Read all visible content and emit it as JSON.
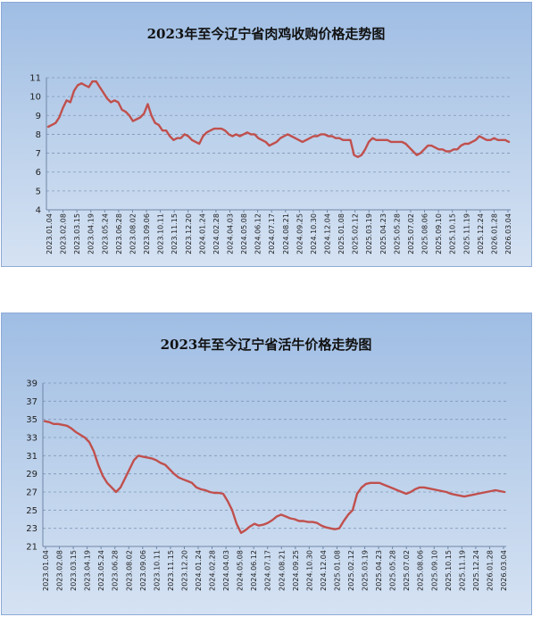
{
  "line_color": "#c0504d",
  "chart_data": [
    {
      "type": "line",
      "title": "2023年至今辽宁省肉鸡收购价格走势图",
      "xlabel": "",
      "ylabel": "",
      "ylim": [
        4,
        11
      ],
      "yticks": [
        4,
        5,
        6,
        7,
        8,
        9,
        10,
        11
      ],
      "grid": true,
      "x_ticks": [
        "2023.01.04",
        "2023.02.08",
        "2023.03.15",
        "2023.04.19",
        "2023.05.24",
        "2023.06.28",
        "2023.08.02",
        "2023.09.06",
        "2023.10.11",
        "2023.11.15",
        "2023.12.20",
        "2024.01.24",
        "2024.02.28",
        "2024.04.03",
        "2024.05.08",
        "2024.06.12",
        "2024.07.17",
        "2024.08.21",
        "2024.09.25",
        "2024.10.30",
        "2024.12.04",
        "2025.01.08",
        "2025.02.12",
        "2025.03.19",
        "2025.04.23",
        "2025.05.28",
        "2025.07.02",
        "2025.08.06",
        "2025.09.10",
        "2025.10.15",
        "2025.11.19",
        "2025.12.24",
        "2026.01.28",
        "2026.03.04"
      ],
      "values": [
        8.4,
        8.5,
        8.6,
        8.9,
        9.4,
        9.8,
        9.7,
        10.3,
        10.6,
        10.7,
        10.6,
        10.5,
        10.8,
        10.8,
        10.5,
        10.2,
        9.9,
        9.7,
        9.8,
        9.7,
        9.3,
        9.2,
        9.0,
        8.7,
        8.8,
        8.9,
        9.1,
        9.6,
        9.0,
        8.6,
        8.5,
        8.2,
        8.2,
        7.9,
        7.7,
        7.8,
        7.8,
        8.0,
        7.9,
        7.7,
        7.6,
        7.5,
        7.9,
        8.1,
        8.2,
        8.3,
        8.3,
        8.3,
        8.2,
        8.0,
        7.9,
        8.0,
        7.9,
        8.0,
        8.1,
        8.0,
        8.0,
        7.8,
        7.7,
        7.6,
        7.4,
        7.5,
        7.6,
        7.8,
        7.9,
        8.0,
        7.9,
        7.8,
        7.7,
        7.6,
        7.7,
        7.8,
        7.9,
        7.9,
        8.0,
        8.0,
        7.9,
        7.9,
        7.8,
        7.8,
        7.7,
        7.7,
        7.7,
        6.9,
        6.8,
        6.9,
        7.2,
        7.6,
        7.8,
        7.7,
        7.7,
        7.7,
        7.7,
        7.6,
        7.6,
        7.6,
        7.6,
        7.5,
        7.3,
        7.1,
        6.9,
        7.0,
        7.2,
        7.4,
        7.4,
        7.3,
        7.2,
        7.2,
        7.1,
        7.1,
        7.2,
        7.2,
        7.4,
        7.5,
        7.5,
        7.6,
        7.7,
        7.9,
        7.8,
        7.7,
        7.7,
        7.8,
        7.7,
        7.7,
        7.7,
        7.6
      ]
    },
    {
      "type": "line",
      "title": "2023年至今辽宁省活牛价格走势图",
      "xlabel": "",
      "ylabel": "",
      "ylim": [
        21,
        39
      ],
      "yticks": [
        21,
        23,
        25,
        27,
        29,
        31,
        33,
        35,
        37,
        39
      ],
      "grid": true,
      "x_ticks": [
        "2023.01.04",
        "2023.02.08",
        "2023.03.15",
        "2023.04.19",
        "2023.05.24",
        "2023.06.28",
        "2023.08.02",
        "2023.09.06",
        "2023.10.11",
        "2023.11.15",
        "2023.12.20",
        "2024.01.24",
        "2024.02.28",
        "2024.04.03",
        "2024.05.08",
        "2024.06.12",
        "2024.07.17",
        "2024.08.21",
        "2024.09.25",
        "2024.10.30",
        "2024.12.04",
        "2025.01.08",
        "2025.02.12",
        "2025.03.19",
        "2025.04.23",
        "2025.05.28",
        "2025.07.02",
        "2025.08.06",
        "2025.09.10",
        "2025.10.15",
        "2025.11.19",
        "2025.12.24",
        "2026.01.28",
        "2026.03.04"
      ],
      "values": [
        34.8,
        34.7,
        34.5,
        34.5,
        34.4,
        34.3,
        34.0,
        33.6,
        33.3,
        33.0,
        32.5,
        31.5,
        30.0,
        28.8,
        28.0,
        27.5,
        27.0,
        27.5,
        28.5,
        29.5,
        30.5,
        31.0,
        30.9,
        30.8,
        30.7,
        30.5,
        30.2,
        30.0,
        29.5,
        29.0,
        28.6,
        28.4,
        28.2,
        28.0,
        27.5,
        27.3,
        27.2,
        27.0,
        26.9,
        26.9,
        26.8,
        26.0,
        25.0,
        23.5,
        22.5,
        22.8,
        23.2,
        23.5,
        23.3,
        23.4,
        23.6,
        23.9,
        24.3,
        24.5,
        24.3,
        24.1,
        24.0,
        23.8,
        23.8,
        23.7,
        23.7,
        23.6,
        23.3,
        23.1,
        23.0,
        22.9,
        23.0,
        23.8,
        24.5,
        25.0,
        26.8,
        27.5,
        27.9,
        28.0,
        28.0,
        28.0,
        27.8,
        27.6,
        27.4,
        27.2,
        27.0,
        26.8,
        27.0,
        27.3,
        27.5,
        27.5,
        27.4,
        27.3,
        27.2,
        27.1,
        27.0,
        26.8,
        26.7,
        26.6,
        26.5,
        26.6,
        26.7,
        26.8,
        26.9,
        27.0,
        27.1,
        27.2,
        27.1,
        27.0
      ]
    }
  ]
}
